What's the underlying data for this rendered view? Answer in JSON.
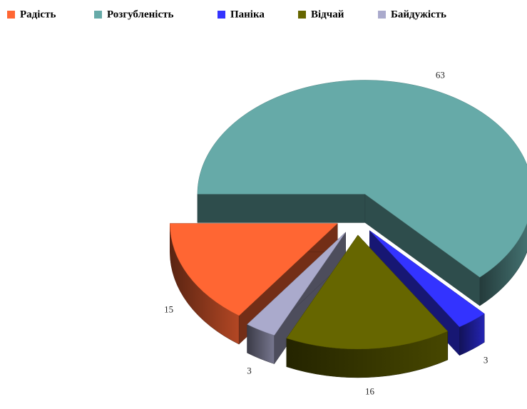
{
  "chart_data": {
    "type": "pie",
    "categories": [
      "Радість",
      "Розгубленість",
      "Паніка",
      "Відчай",
      "Байдужість"
    ],
    "values": [
      15,
      63,
      3,
      16,
      3
    ],
    "colors": [
      "#ff6633",
      "#66aaa8",
      "#3333ff",
      "#666600",
      "#aaaacc"
    ],
    "legend": "top"
  }
}
